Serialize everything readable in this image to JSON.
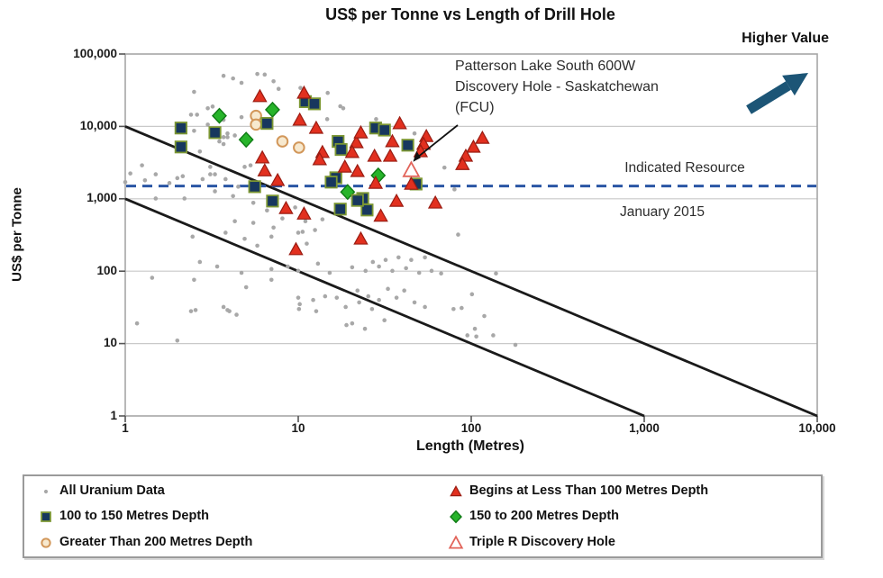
{
  "title": "US$ per Tonne vs Length of Drill Hole",
  "higher_value_label": "Higher Value",
  "axes": {
    "xlabel": "Length (Metres)",
    "ylabel": "US$ per Tonne",
    "x_ticks": [
      "1",
      "10",
      "100",
      "1,000",
      "10,000"
    ],
    "y_ticks": [
      "1",
      "10",
      "100",
      "1,000",
      "10,000",
      "100,000"
    ],
    "x_range": [
      1,
      10000
    ],
    "y_range": [
      1,
      100000
    ],
    "x_scale": "log",
    "y_scale": "log",
    "grid": "horizontal-only"
  },
  "annotation": {
    "line1": "Patterson Lake South 600W",
    "line2": "Discovery Hole - Saskatchewan",
    "line3": "(FCU)",
    "arrow_target_point": [
      45,
      2500
    ]
  },
  "indicated_resource_label": "Indicated Resource",
  "january_label": "January 2015",
  "legend": [
    {
      "label": "All Uranium Data",
      "marker": "gray-dot"
    },
    {
      "label": "Begins at Less Than 100 Metres Depth",
      "marker": "red-triangle"
    },
    {
      "label": "100 to 150 Metres Depth",
      "marker": "navy-square"
    },
    {
      "label": "150 to 200 Metres Depth",
      "marker": "green-diamond"
    },
    {
      "label": "Greater Than 200 Metres Depth",
      "marker": "tan-circle"
    },
    {
      "label": "Triple R Discovery Hole",
      "marker": "open-triangle"
    }
  ],
  "colors": {
    "gray_dot": "#a8a8a8",
    "red_fill": "#e2301f",
    "red_stroke": "#9a1c12",
    "navy_fill": "#17375e",
    "navy_stroke": "#7c9733",
    "green_fill": "#27b42a",
    "green_stroke": "#0e7a14",
    "tan_fill": "#f7e9cf",
    "tan_stroke": "#d2975a",
    "open_tri_stroke": "#e2645a",
    "dashed_line": "#2a56a4",
    "higher_value_arrow": "#1c5576",
    "grid": "#c9c9c9",
    "plot_border": "#a6a6a6",
    "black_line": "#1a1a1a"
  },
  "chart_data": {
    "type": "scatter",
    "title": "US$ per Tonne vs Length of Drill Hole",
    "xlabel": "Length (Metres)",
    "ylabel": "US$ per Tonne",
    "xlim": [
      1,
      10000
    ],
    "ylim": [
      1,
      100000
    ],
    "log_x": true,
    "log_y": true,
    "reference_lines": [
      {
        "name": "upper-diagonal",
        "from": [
          1,
          10000
        ],
        "to": [
          10000,
          1
        ]
      },
      {
        "name": "lower-diagonal",
        "from": [
          1,
          1000
        ],
        "to": [
          1000,
          1
        ]
      }
    ],
    "indicated_resource_line": {
      "value": 1500,
      "style": "dashed"
    },
    "series": [
      {
        "name": "All Uranium Data",
        "marker": "gray-dot",
        "points": [
          [
            2.5,
            30000
          ],
          [
            3.7,
            50000
          ],
          [
            4.2,
            46000
          ],
          [
            5.8,
            53000
          ],
          [
            6.4,
            52000
          ],
          [
            7.2,
            42000
          ],
          [
            7.7,
            33000
          ],
          [
            10.3,
            34000
          ],
          [
            14.8,
            29000
          ],
          [
            4.7,
            40000
          ],
          [
            17.5,
            19000
          ],
          [
            18.2,
            17800
          ],
          [
            3.0,
            17800
          ],
          [
            3.2,
            18800
          ],
          [
            2.4,
            14500
          ],
          [
            2.6,
            14500
          ],
          [
            3.7,
            12300
          ],
          [
            4.7,
            13400
          ],
          [
            14.7,
            12600
          ],
          [
            28.2,
            12600
          ],
          [
            3.0,
            10600
          ],
          [
            2.5,
            8700
          ],
          [
            3.9,
            8000
          ],
          [
            3.7,
            7100
          ],
          [
            3.9,
            7100
          ],
          [
            4.3,
            7500
          ],
          [
            3.7,
            5700
          ],
          [
            4.9,
            6200
          ],
          [
            3.5,
            6200
          ],
          [
            47,
            8000
          ],
          [
            2.7,
            4500
          ],
          [
            4.9,
            2760
          ],
          [
            5.3,
            2900
          ],
          [
            3.1,
            2760
          ],
          [
            1.25,
            2900
          ],
          [
            1.5,
            2180
          ],
          [
            1.07,
            2240
          ],
          [
            2.0,
            1930
          ],
          [
            2.15,
            2050
          ],
          [
            3.1,
            2180
          ],
          [
            3.8,
            1870
          ],
          [
            70,
            2700
          ],
          [
            1.3,
            1800
          ],
          [
            1.0,
            1700
          ],
          [
            1.8,
            1650
          ],
          [
            2.8,
            1870
          ],
          [
            3.3,
            2180
          ],
          [
            4.5,
            1470
          ],
          [
            3.3,
            1270
          ],
          [
            4.2,
            1090
          ],
          [
            2.2,
            1010
          ],
          [
            1.5,
            1010
          ],
          [
            80,
            1350
          ],
          [
            5.5,
            880
          ],
          [
            6.6,
            690
          ],
          [
            9.6,
            760
          ],
          [
            8.1,
            535
          ],
          [
            11,
            490
          ],
          [
            13.8,
            520
          ],
          [
            5.5,
            465
          ],
          [
            4.3,
            490
          ],
          [
            7.2,
            400
          ],
          [
            10.6,
            350
          ],
          [
            12.5,
            370
          ],
          [
            2.45,
            300
          ],
          [
            3.8,
            340
          ],
          [
            4.9,
            280
          ],
          [
            7.0,
            300
          ],
          [
            10,
            340
          ],
          [
            11.2,
            240
          ],
          [
            5.8,
            225
          ],
          [
            84,
            320
          ],
          [
            2.7,
            134
          ],
          [
            3.4,
            116
          ],
          [
            4.7,
            95
          ],
          [
            7.0,
            107
          ],
          [
            8.7,
            116
          ],
          [
            10,
            101
          ],
          [
            13,
            127
          ],
          [
            15.2,
            95
          ],
          [
            20.5,
            113
          ],
          [
            24.5,
            101
          ],
          [
            29.3,
            116
          ],
          [
            35,
            101
          ],
          [
            42,
            110
          ],
          [
            50,
            95
          ],
          [
            59,
            101
          ],
          [
            67,
            93
          ],
          [
            27,
            134
          ],
          [
            32,
            143
          ],
          [
            38,
            155
          ],
          [
            45,
            143
          ],
          [
            54,
            155
          ],
          [
            139,
            93
          ],
          [
            7.0,
            76
          ],
          [
            5.0,
            60
          ],
          [
            2.5,
            76
          ],
          [
            1.43,
            81
          ],
          [
            3.7,
            32
          ],
          [
            2.4,
            28
          ],
          [
            4.0,
            28
          ],
          [
            10,
            43
          ],
          [
            12.2,
            40
          ],
          [
            10.2,
            35
          ],
          [
            12.7,
            28
          ],
          [
            22,
            54
          ],
          [
            25.4,
            45
          ],
          [
            29.3,
            40
          ],
          [
            22.5,
            37
          ],
          [
            26.7,
            30
          ],
          [
            18.8,
            32
          ],
          [
            14.3,
            45
          ],
          [
            16.7,
            43
          ],
          [
            33,
            57
          ],
          [
            41,
            54
          ],
          [
            37,
            43
          ],
          [
            47,
            37
          ],
          [
            54,
            32
          ],
          [
            31.5,
            21
          ],
          [
            20.5,
            19
          ],
          [
            24.3,
            16
          ],
          [
            1.17,
            19
          ],
          [
            101,
            48
          ],
          [
            79,
            30
          ],
          [
            88,
            31
          ],
          [
            119,
            24
          ],
          [
            105,
            16
          ],
          [
            95,
            13
          ],
          [
            107,
            12.5
          ],
          [
            134,
            13
          ],
          [
            180,
            9.6
          ],
          [
            2.0,
            11
          ],
          [
            2.55,
            29
          ],
          [
            3.9,
            29
          ],
          [
            4.4,
            25
          ],
          [
            10.1,
            30
          ],
          [
            19,
            18
          ]
        ]
      },
      {
        "name": "Begins at Less Than 100 Metres Depth",
        "marker": "red-triangle",
        "points": [
          [
            6,
            26000
          ],
          [
            10.8,
            29000
          ],
          [
            10.2,
            12300
          ],
          [
            12.7,
            9500
          ],
          [
            13.8,
            4400
          ],
          [
            6.2,
            3700
          ],
          [
            6.4,
            2450
          ],
          [
            7.6,
            1800
          ],
          [
            8.5,
            740
          ],
          [
            10.8,
            620
          ],
          [
            21.7,
            6000
          ],
          [
            20.5,
            4400
          ],
          [
            18.6,
            2760
          ],
          [
            22,
            2400
          ],
          [
            38.6,
            11000
          ],
          [
            35,
            6200
          ],
          [
            34,
            3900
          ],
          [
            27.6,
            3900
          ],
          [
            23,
            8200
          ],
          [
            55,
            7300
          ],
          [
            53,
            5700
          ],
          [
            51,
            4500
          ],
          [
            28,
            1650
          ],
          [
            45,
            1600
          ],
          [
            37,
            930
          ],
          [
            62,
            880
          ],
          [
            30,
            580
          ],
          [
            116,
            6900
          ],
          [
            103,
            5200
          ],
          [
            93,
            3900
          ],
          [
            89,
            3000
          ],
          [
            9.7,
            200
          ],
          [
            23,
            280
          ],
          [
            13.3,
            3500
          ]
        ]
      },
      {
        "name": "100 to 150 Metres Depth",
        "marker": "navy-square",
        "points": [
          [
            2.1,
            9500
          ],
          [
            3.3,
            8200
          ],
          [
            2.1,
            5200
          ],
          [
            6.6,
            11000
          ],
          [
            11,
            22000
          ],
          [
            12.4,
            20500
          ],
          [
            17,
            6200
          ],
          [
            17.7,
            4800
          ],
          [
            28,
            9500
          ],
          [
            31.5,
            8900
          ],
          [
            43,
            5500
          ],
          [
            23.6,
            1010
          ],
          [
            48,
            1600
          ],
          [
            16.5,
            1950
          ],
          [
            15.5,
            1700
          ],
          [
            17.5,
            720
          ],
          [
            25,
            700
          ],
          [
            22,
            950
          ],
          [
            7.1,
            930
          ],
          [
            5.6,
            1470
          ]
        ]
      },
      {
        "name": "150 to 200 Metres Depth",
        "marker": "green-diamond",
        "points": [
          [
            3.5,
            14000
          ],
          [
            7.1,
            17000
          ],
          [
            5.0,
            6550
          ],
          [
            19.3,
            1240
          ],
          [
            29,
            2100
          ]
        ]
      },
      {
        "name": "Greater Than 200 Metres Depth",
        "marker": "tan-circle",
        "points": [
          [
            5.7,
            14000
          ],
          [
            5.7,
            10600
          ],
          [
            8.1,
            6200
          ],
          [
            10.1,
            5100
          ]
        ]
      },
      {
        "name": "Triple R Discovery Hole",
        "marker": "open-triangle",
        "points": [
          [
            45,
            2500
          ]
        ]
      }
    ]
  }
}
